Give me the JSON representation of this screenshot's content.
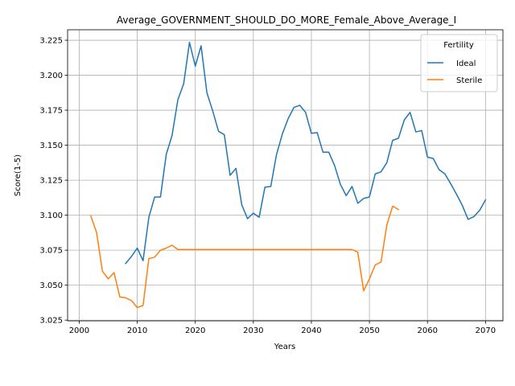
{
  "chart_data": {
    "type": "line",
    "title": "Average_GOVERNMENT_SHOULD_DO_MORE_Female_Above_Average_I",
    "xlabel": "Years",
    "ylabel": "Score(1-5)",
    "xlim": [
      1998,
      2073
    ],
    "ylim": [
      3.0245,
      3.2325
    ],
    "xticks": [
      2000,
      2010,
      2020,
      2030,
      2040,
      2050,
      2060,
      2070
    ],
    "yticks": [
      3.025,
      3.05,
      3.075,
      3.1,
      3.125,
      3.15,
      3.175,
      3.2,
      3.225
    ],
    "ytick_labels": [
      "3.025",
      "3.050",
      "3.075",
      "3.100",
      "3.125",
      "3.150",
      "3.175",
      "3.200",
      "3.225"
    ],
    "grid": true,
    "legend": {
      "title": "Fertility",
      "placement": "top-right"
    },
    "series": [
      {
        "name": "Ideal",
        "color": "#1f77b4",
        "x": [
          2008,
          2009,
          2010,
          2011,
          2012,
          2013,
          2014,
          2015,
          2016,
          2017,
          2018,
          2019,
          2020,
          2021,
          2022,
          2023,
          2024,
          2025,
          2026,
          2027,
          2028,
          2029,
          2030,
          2031,
          2032,
          2033,
          2034,
          2035,
          2036,
          2037,
          2038,
          2039,
          2040,
          2041,
          2042,
          2043,
          2044,
          2045,
          2046,
          2047,
          2048,
          2049,
          2050,
          2051,
          2052,
          2053,
          2054,
          2055,
          2056,
          2057,
          2058,
          2059,
          2060,
          2061,
          2062,
          2063,
          2064,
          2065,
          2066,
          2067,
          2068,
          2069,
          2070
        ],
        "y": [
          3.0655,
          3.0705,
          3.0765,
          3.0675,
          3.0985,
          3.113,
          3.113,
          3.1435,
          3.157,
          3.1825,
          3.194,
          3.2235,
          3.2065,
          3.221,
          3.1875,
          3.1745,
          3.16,
          3.1575,
          3.1285,
          3.1335,
          3.1075,
          3.0975,
          3.1015,
          3.0985,
          3.12,
          3.1205,
          3.1435,
          3.158,
          3.169,
          3.177,
          3.1785,
          3.1735,
          3.1585,
          3.159,
          3.145,
          3.145,
          3.1355,
          3.122,
          3.114,
          3.1205,
          3.1085,
          3.112,
          3.113,
          3.1295,
          3.131,
          3.1375,
          3.1535,
          3.155,
          3.168,
          3.1735,
          3.1595,
          3.1605,
          3.1415,
          3.1405,
          3.1325,
          3.1295,
          3.1225,
          3.115,
          3.107,
          3.097,
          3.099,
          3.1035,
          3.111
        ]
      },
      {
        "name": "Sterile",
        "color": "#ff7f0e",
        "x": [
          2002,
          2003,
          2004,
          2005,
          2006,
          2007,
          2008,
          2009,
          2010,
          2011,
          2012,
          2013,
          2014,
          2015,
          2016,
          2017,
          2018,
          2019,
          2020,
          2021,
          2022,
          2023,
          2024,
          2025,
          2026,
          2027,
          2028,
          2029,
          2030,
          2031,
          2032,
          2033,
          2034,
          2035,
          2036,
          2037,
          2038,
          2039,
          2040,
          2041,
          2042,
          2043,
          2044,
          2045,
          2046,
          2047,
          2048,
          2049,
          2050,
          2051,
          2052,
          2053,
          2054,
          2055
        ],
        "y": [
          3.0995,
          3.0875,
          3.06,
          3.0545,
          3.059,
          3.0415,
          3.041,
          3.039,
          3.034,
          3.0355,
          3.069,
          3.07,
          3.075,
          3.0765,
          3.0785,
          3.0755,
          3.0755,
          3.0755,
          3.0755,
          3.0755,
          3.0755,
          3.0755,
          3.0755,
          3.0755,
          3.0755,
          3.0755,
          3.0755,
          3.0755,
          3.0755,
          3.0755,
          3.0755,
          3.0755,
          3.0755,
          3.0755,
          3.0755,
          3.0755,
          3.0755,
          3.0755,
          3.0755,
          3.0755,
          3.0755,
          3.0755,
          3.0755,
          3.0755,
          3.0755,
          3.0755,
          3.0735,
          3.046,
          3.0545,
          3.0645,
          3.0665,
          3.093,
          3.1065,
          3.104
        ]
      }
    ]
  }
}
